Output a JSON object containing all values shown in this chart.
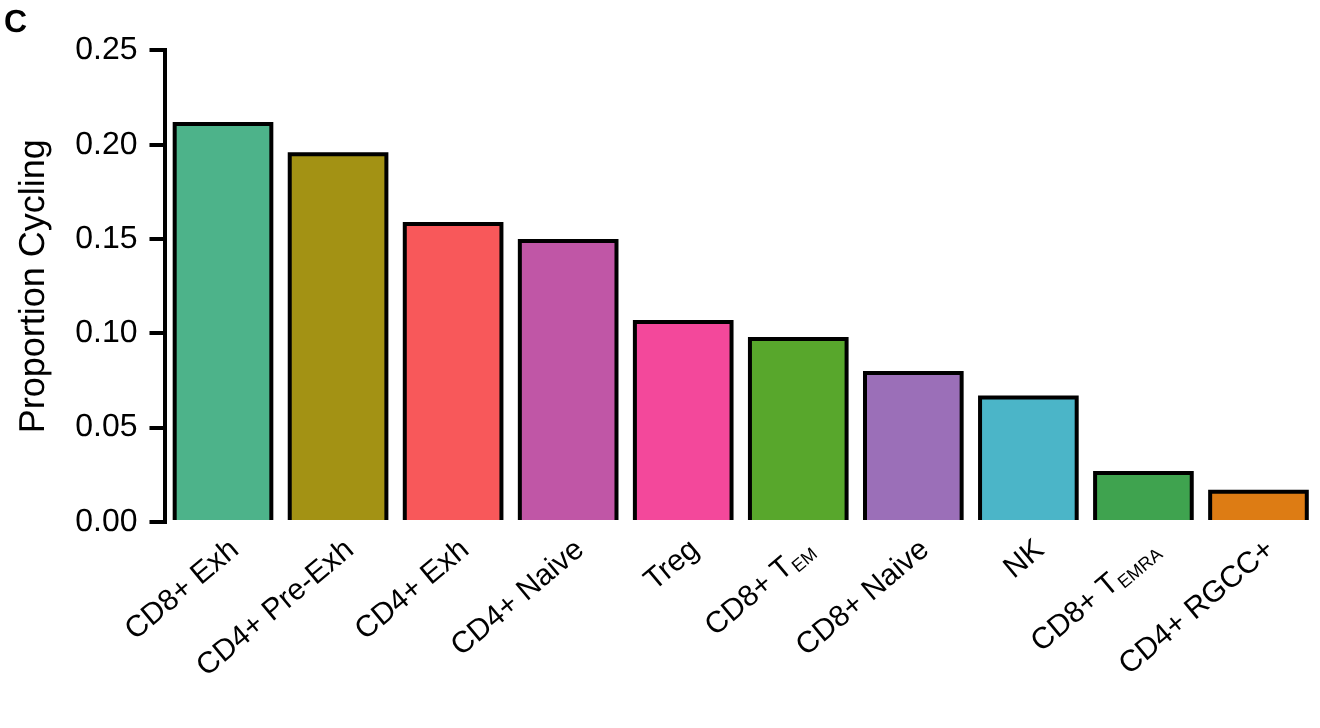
{
  "chart_data": {
    "type": "bar",
    "title": "C",
    "ylabel": "Proportion Cycling",
    "categories": [
      "CD8+ Exh",
      "CD4+ Pre-Exh",
      "CD4+ Exh",
      "CD4+ Naive",
      "Treg",
      "CD8+ T$_{EM}$",
      "CD8+ Naive",
      "NK",
      "CD8+ T$_{EMRA}$",
      "CD4+ RGCC+"
    ],
    "values": [
      0.211,
      0.195,
      0.158,
      0.149,
      0.106,
      0.097,
      0.079,
      0.066,
      0.026,
      0.016
    ],
    "colors": [
      "#4db38a",
      "#a39214",
      "#f8585a",
      "#c056a6",
      "#f3489b",
      "#58a72c",
      "#9b6fb8",
      "#4bb5c8",
      "#3fa34f",
      "#dd7c14"
    ],
    "ylim": [
      0,
      0.25
    ],
    "yticks": [
      {
        "value": 0,
        "label": "0.00"
      },
      {
        "value": 0.05,
        "label": "0.05"
      },
      {
        "value": 0.1,
        "label": "0.10"
      },
      {
        "value": 0.15,
        "label": "0.15"
      },
      {
        "value": 0.2,
        "label": "0.20"
      },
      {
        "value": 0.25,
        "label": "0.25"
      }
    ],
    "grid": false,
    "legend": false
  }
}
